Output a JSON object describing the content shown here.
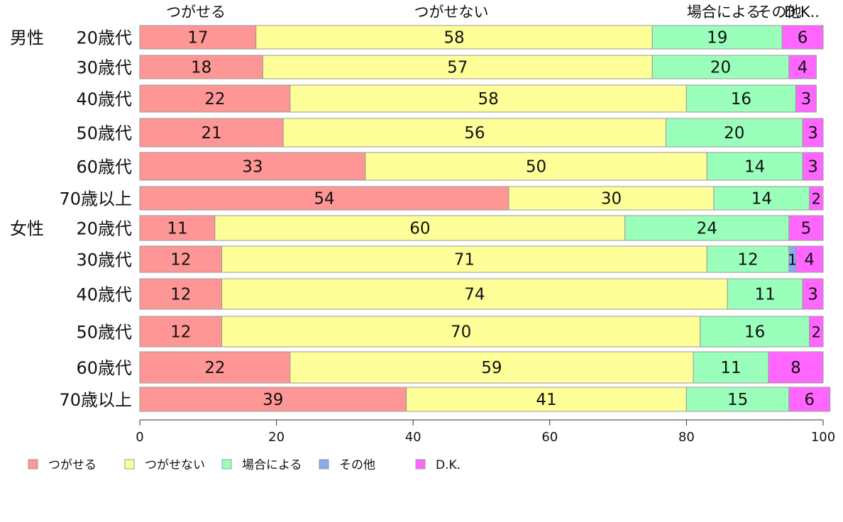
{
  "chart_data": {
    "type": "bar",
    "orientation": "horizontal",
    "stacked": true,
    "series": [
      {
        "name": "つがせる",
        "color": "#ff9696",
        "values": [
          17,
          18,
          22,
          21,
          33,
          54,
          11,
          12,
          12,
          12,
          22,
          39
        ]
      },
      {
        "name": "つがせない",
        "color": "#ffff99",
        "values": [
          58,
          57,
          58,
          56,
          50,
          30,
          60,
          71,
          74,
          70,
          59,
          41
        ]
      },
      {
        "name": "場合による",
        "color": "#99ffbb",
        "values": [
          19,
          20,
          16,
          20,
          14,
          14,
          24,
          12,
          11,
          16,
          11,
          15
        ]
      },
      {
        "name": "その他",
        "color": "#88aaee",
        "values": [
          0,
          0,
          0,
          0,
          0,
          0,
          0,
          1,
          0,
          0,
          0,
          0
        ]
      },
      {
        "name": "D.K.",
        "color": "#ff66ff",
        "values": [
          6,
          4,
          3,
          3,
          3,
          2,
          5,
          4,
          3,
          2,
          8,
          6
        ]
      }
    ],
    "categories": [
      "20歳代",
      "30歳代",
      "40歳代",
      "50歳代",
      "60歳代",
      "70歳以上",
      "20歳代",
      "30歳代",
      "40歳代",
      "50歳代",
      "60歳代",
      "70歳以上"
    ],
    "groups": [
      {
        "label": "男性",
        "start": 0
      },
      {
        "label": "女性",
        "start": 6
      }
    ],
    "top_labels": [
      "つがせる",
      "つがせない",
      "場合による",
      "その他",
      "D.K.."
    ],
    "xlim": [
      0,
      100
    ],
    "xticks": [
      0,
      20,
      40,
      60,
      80,
      100
    ],
    "grid": false,
    "legend_position": "bottom"
  }
}
